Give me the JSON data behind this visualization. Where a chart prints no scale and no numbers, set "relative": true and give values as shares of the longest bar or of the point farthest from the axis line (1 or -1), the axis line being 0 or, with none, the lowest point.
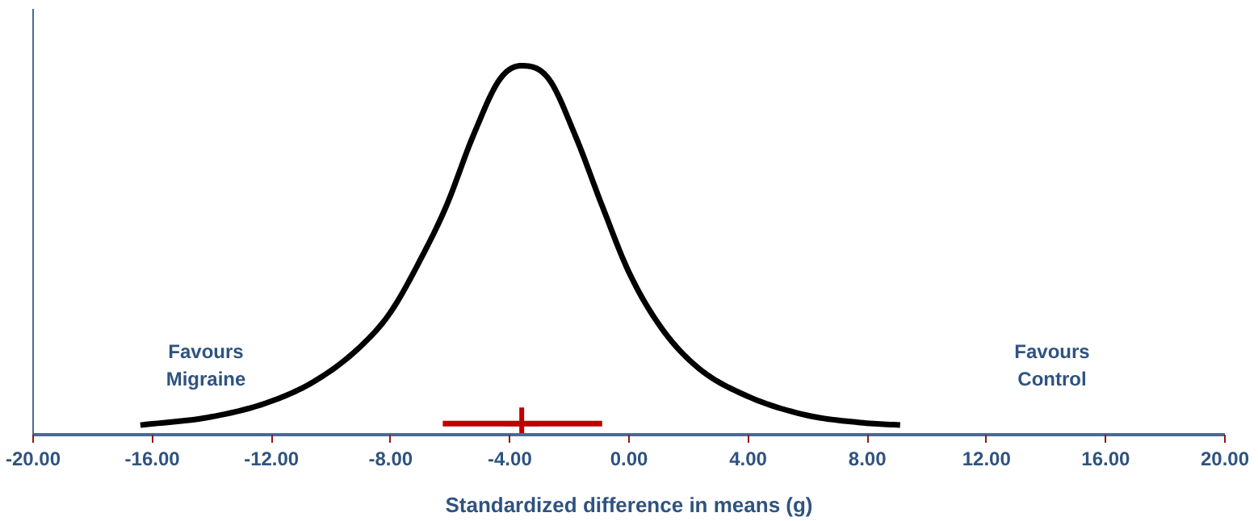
{
  "chart_data": {
    "type": "line",
    "relative": true,
    "xlabel": "Standardized difference in means (g)",
    "xlim": [
      -20,
      20
    ],
    "xticks": [
      {
        "value": -20,
        "label": "-20.00"
      },
      {
        "value": -16,
        "label": "-16.00"
      },
      {
        "value": -12,
        "label": "-12.00"
      },
      {
        "value": -8,
        "label": "-8.00"
      },
      {
        "value": -4,
        "label": "-4.00"
      },
      {
        "value": 0,
        "label": "0.00"
      },
      {
        "value": 4,
        "label": "4.00"
      },
      {
        "value": 8,
        "label": "8.00"
      },
      {
        "value": 12,
        "label": "12.00"
      },
      {
        "value": 16,
        "label": "16.00"
      },
      {
        "value": 20,
        "label": "20.00"
      }
    ],
    "tick_labels": "x",
    "grid": false,
    "annotations": [
      "Favours\nMigraine",
      "Favours\nControl"
    ],
    "series": [
      {
        "color": "#000000",
        "marker": "none",
        "x": [
          -16.4,
          -14.05,
          -12.03,
          -10.45,
          -9.0,
          -8.02,
          -7.03,
          -6.13,
          -5.23,
          -4.32,
          -3.6,
          -2.7,
          -1.8,
          -0.9,
          0.0,
          1.08,
          2.34,
          3.96,
          5.95,
          7.75,
          9.1
        ],
        "values": [
          0.026,
          0.048,
          0.09,
          0.15,
          0.24,
          0.33,
          0.47,
          0.62,
          0.81,
          0.965,
          1.0,
          0.965,
          0.81,
          0.62,
          0.44,
          0.29,
          0.18,
          0.105,
          0.053,
          0.033,
          0.026
        ]
      },
      {
        "type": "scatter",
        "color": "#c00000",
        "marker": "cross",
        "x": [
          -3.6
        ],
        "values": [
          0.03
        ],
        "xerrors": [
          [
            -6.25,
            -0.9
          ]
        ]
      }
    ]
  }
}
